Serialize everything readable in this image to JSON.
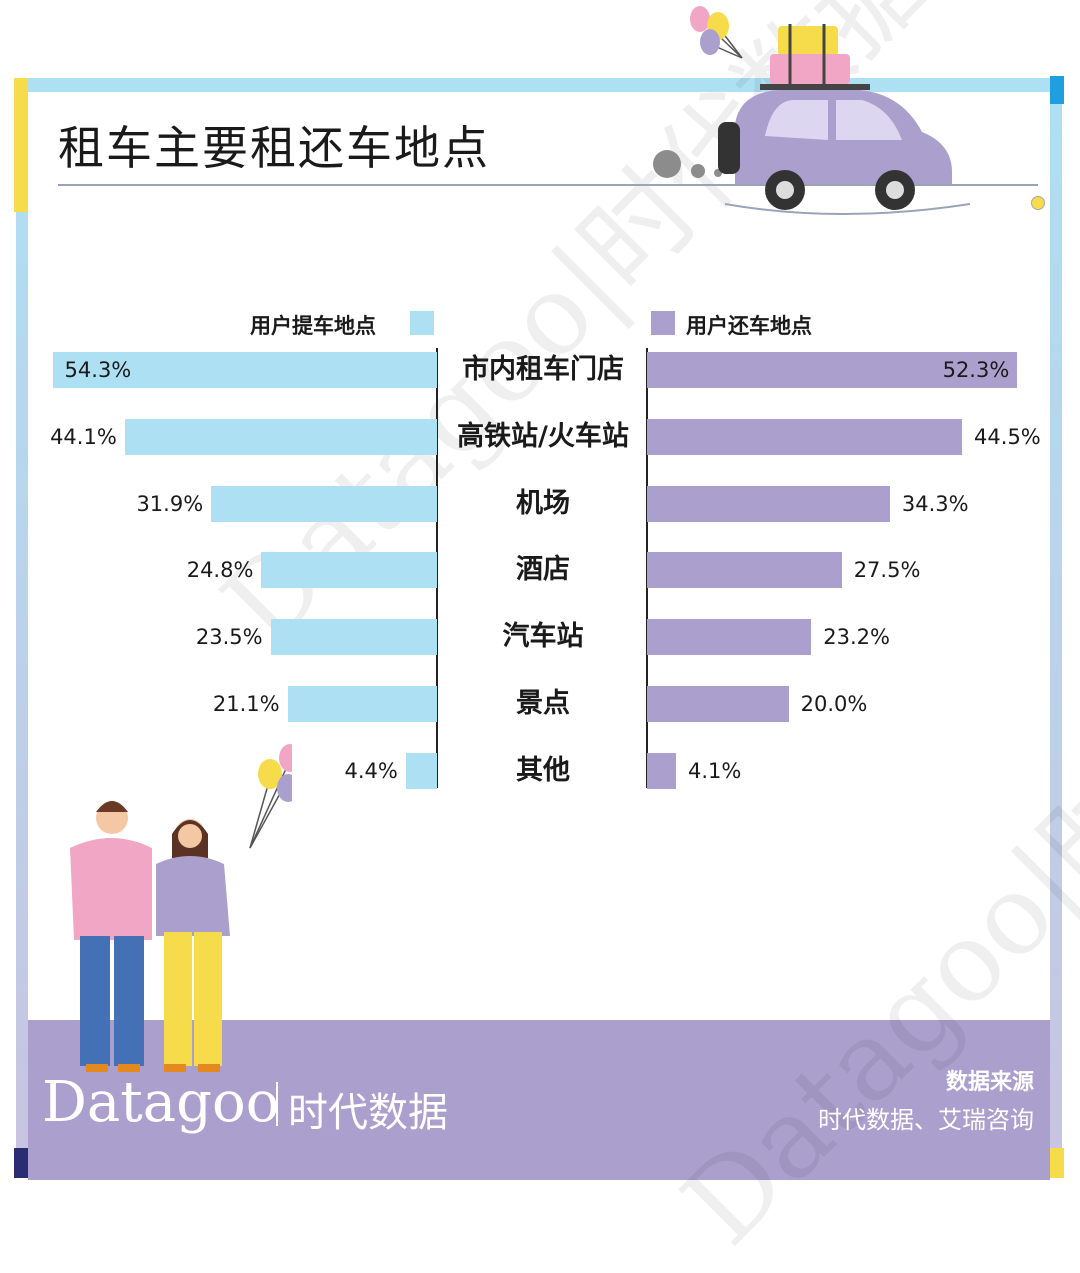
{
  "header": {
    "title": "租车主要租还车地点"
  },
  "legend": {
    "left_label": "用户提车地点",
    "right_label": "用户还车地点"
  },
  "chart_data": {
    "type": "bar",
    "categories": [
      "市内租车门店",
      "高铁站/火车站",
      "机场",
      "酒店",
      "汽车站",
      "景点",
      "其他"
    ],
    "series": [
      {
        "name": "用户提车地点",
        "values": [
          54.3,
          44.1,
          31.9,
          24.8,
          23.5,
          21.1,
          4.4
        ]
      },
      {
        "name": "用户还车地点",
        "values": [
          52.3,
          44.5,
          34.3,
          27.5,
          23.2,
          20.0,
          4.1
        ]
      }
    ],
    "value_labels_left": [
      "54.3%",
      "44.1%",
      "31.9%",
      "24.8%",
      "23.5%",
      "21.1%",
      "4.4%"
    ],
    "value_labels_right": [
      "52.3%",
      "44.5%",
      "34.3%",
      "27.5%",
      "23.2%",
      "20.0%",
      "4.1%"
    ],
    "orientation": "horizontal-butterfly",
    "unit": "%",
    "colors": {
      "left": "#aee0f4",
      "right": "#ab9fcd"
    }
  },
  "brand": {
    "name": "Datagoo",
    "cn": "时代数据"
  },
  "source": {
    "title": "数据来源",
    "text": "时代数据、艾瑞咨询"
  },
  "watermark": {
    "text": "Datagoo|时代数据"
  },
  "icons": [
    "car-illustration-icon",
    "balloons-icon",
    "suitcases-icon",
    "couple-illustration-icon"
  ]
}
